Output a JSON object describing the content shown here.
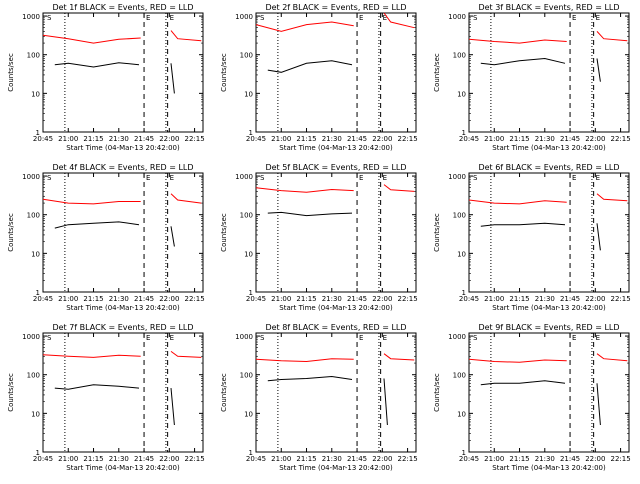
{
  "colors": {
    "events": "#000000",
    "lld": "#ff0000",
    "background": "#ffffff",
    "axis": "#000000"
  },
  "common": {
    "ylabel": "Counts/sec",
    "xlabel": "Start Time (04-Mar-13 20:42:00)",
    "x_ticks": [
      "20:45",
      "21:00",
      "21:15",
      "21:30",
      "21:45",
      "22:00",
      "22:15"
    ],
    "y_ticks": [
      "1",
      "10",
      "100",
      "1000"
    ],
    "markers": {
      "dotted_lines": [
        "20:58",
        "21:58"
      ],
      "dashed_lines": [
        "21:45",
        "21:59"
      ],
      "top_marks": [
        "S",
        "E",
        "E"
      ]
    }
  },
  "chart_data": [
    {
      "type": "line",
      "title": "Det 1f BLACK = Events, RED = LLD",
      "x_range": [
        "20:45",
        "22:20"
      ],
      "ylim": [
        1,
        1200
      ],
      "yscale": "log",
      "series": [
        {
          "name": "Events",
          "segments": [
            {
              "x": [
                "20:52",
                "21:00",
                "21:15",
                "21:30",
                "21:42"
              ],
              "y": [
                55,
                60,
                48,
                62,
                55
              ]
            },
            {
              "x": [
                "22:01",
                "22:03"
              ],
              "y": [
                60,
                10
              ]
            }
          ]
        },
        {
          "name": "LLD",
          "segments": [
            {
              "x": [
                "20:45",
                "21:00",
                "21:15",
                "21:30",
                "21:43"
              ],
              "y": [
                320,
                260,
                200,
                250,
                270
              ]
            },
            {
              "x": [
                "22:01",
                "22:05",
                "22:19"
              ],
              "y": [
                420,
                260,
                230
              ]
            }
          ]
        }
      ]
    },
    {
      "type": "line",
      "title": "Det 2f BLACK = Events, RED = LLD",
      "x_range": [
        "20:45",
        "22:20"
      ],
      "ylim": [
        1,
        1200
      ],
      "yscale": "log",
      "series": [
        {
          "name": "Events",
          "segments": [
            {
              "x": [
                "20:52",
                "21:00",
                "21:15",
                "21:30",
                "21:42"
              ],
              "y": [
                40,
                35,
                60,
                70,
                55
              ]
            }
          ]
        },
        {
          "name": "LLD",
          "segments": [
            {
              "x": [
                "20:45",
                "21:00",
                "21:15",
                "21:30",
                "21:43"
              ],
              "y": [
                600,
                400,
                600,
                700,
                560
              ]
            },
            {
              "x": [
                "22:01",
                "22:05",
                "22:19"
              ],
              "y": [
                1200,
                700,
                500
              ]
            }
          ]
        }
      ]
    },
    {
      "type": "line",
      "title": "Det 3f BLACK = Events, RED = LLD",
      "x_range": [
        "20:45",
        "22:20"
      ],
      "ylim": [
        1,
        1200
      ],
      "yscale": "log",
      "series": [
        {
          "name": "Events",
          "segments": [
            {
              "x": [
                "20:52",
                "21:00",
                "21:15",
                "21:30",
                "21:42"
              ],
              "y": [
                60,
                55,
                70,
                80,
                60
              ]
            },
            {
              "x": [
                "22:01",
                "22:03"
              ],
              "y": [
                80,
                20
              ]
            }
          ]
        },
        {
          "name": "LLD",
          "segments": [
            {
              "x": [
                "20:45",
                "21:00",
                "21:15",
                "21:30",
                "21:43"
              ],
              "y": [
                250,
                220,
                200,
                240,
                220
              ]
            },
            {
              "x": [
                "22:01",
                "22:05",
                "22:19"
              ],
              "y": [
                400,
                260,
                230
              ]
            }
          ]
        }
      ]
    },
    {
      "type": "line",
      "title": "Det 4f BLACK = Events, RED = LLD",
      "x_range": [
        "20:45",
        "22:20"
      ],
      "ylim": [
        1,
        1200
      ],
      "yscale": "log",
      "series": [
        {
          "name": "Events",
          "segments": [
            {
              "x": [
                "20:52",
                "21:00",
                "21:15",
                "21:30",
                "21:42"
              ],
              "y": [
                45,
                55,
                60,
                65,
                55
              ]
            },
            {
              "x": [
                "22:01",
                "22:03"
              ],
              "y": [
                50,
                15
              ]
            }
          ]
        },
        {
          "name": "LLD",
          "segments": [
            {
              "x": [
                "20:45",
                "21:00",
                "21:15",
                "21:30",
                "21:43"
              ],
              "y": [
                250,
                200,
                190,
                220,
                220
              ]
            },
            {
              "x": [
                "22:01",
                "22:05",
                "22:19"
              ],
              "y": [
                350,
                240,
                200
              ]
            }
          ]
        }
      ]
    },
    {
      "type": "line",
      "title": "Det 5f BLACK = Events, RED = LLD",
      "x_range": [
        "20:45",
        "22:20"
      ],
      "ylim": [
        1,
        1200
      ],
      "yscale": "log",
      "series": [
        {
          "name": "Events",
          "segments": [
            {
              "x": [
                "20:52",
                "21:00",
                "21:15",
                "21:30",
                "21:42"
              ],
              "y": [
                110,
                115,
                95,
                105,
                110
              ]
            }
          ]
        },
        {
          "name": "LLD",
          "segments": [
            {
              "x": [
                "20:45",
                "21:00",
                "21:15",
                "21:30",
                "21:43"
              ],
              "y": [
                500,
                420,
                380,
                450,
                420
              ]
            },
            {
              "x": [
                "22:01",
                "22:05",
                "22:19"
              ],
              "y": [
                600,
                440,
                400
              ]
            }
          ]
        }
      ]
    },
    {
      "type": "line",
      "title": "Det 6f BLACK = Events, RED = LLD",
      "x_range": [
        "20:45",
        "22:20"
      ],
      "ylim": [
        1,
        1200
      ],
      "yscale": "log",
      "series": [
        {
          "name": "Events",
          "segments": [
            {
              "x": [
                "20:52",
                "21:00",
                "21:15",
                "21:30",
                "21:42"
              ],
              "y": [
                50,
                55,
                55,
                60,
                55
              ]
            },
            {
              "x": [
                "22:01",
                "22:03"
              ],
              "y": [
                60,
                12
              ]
            }
          ]
        },
        {
          "name": "LLD",
          "segments": [
            {
              "x": [
                "20:45",
                "21:00",
                "21:15",
                "21:30",
                "21:43"
              ],
              "y": [
                240,
                200,
                190,
                230,
                210
              ]
            },
            {
              "x": [
                "22:01",
                "22:05",
                "22:19"
              ],
              "y": [
                350,
                250,
                230
              ]
            }
          ]
        }
      ]
    },
    {
      "type": "line",
      "title": "Det 7f BLACK = Events, RED = LLD",
      "x_range": [
        "20:45",
        "22:20"
      ],
      "ylim": [
        1,
        1200
      ],
      "yscale": "log",
      "series": [
        {
          "name": "Events",
          "segments": [
            {
              "x": [
                "20:52",
                "21:00",
                "21:15",
                "21:30",
                "21:42"
              ],
              "y": [
                45,
                42,
                55,
                50,
                45
              ]
            },
            {
              "x": [
                "22:01",
                "22:03"
              ],
              "y": [
                45,
                5
              ]
            }
          ]
        },
        {
          "name": "LLD",
          "segments": [
            {
              "x": [
                "20:45",
                "21:00",
                "21:15",
                "21:30",
                "21:43"
              ],
              "y": [
                330,
                300,
                280,
                320,
                300
              ]
            },
            {
              "x": [
                "22:01",
                "22:05",
                "22:19"
              ],
              "y": [
                400,
                300,
                280
              ]
            }
          ]
        }
      ]
    },
    {
      "type": "line",
      "title": "Det 8f BLACK = Events, RED = LLD",
      "x_range": [
        "20:45",
        "22:20"
      ],
      "ylim": [
        1,
        1200
      ],
      "yscale": "log",
      "series": [
        {
          "name": "Events",
          "segments": [
            {
              "x": [
                "20:52",
                "21:00",
                "21:15",
                "21:30",
                "21:42"
              ],
              "y": [
                70,
                75,
                80,
                90,
                75
              ]
            },
            {
              "x": [
                "22:01",
                "22:03"
              ],
              "y": [
                80,
                5
              ]
            }
          ]
        },
        {
          "name": "LLD",
          "segments": [
            {
              "x": [
                "20:45",
                "21:00",
                "21:15",
                "21:30",
                "21:43"
              ],
              "y": [
                250,
                230,
                220,
                260,
                250
              ]
            },
            {
              "x": [
                "22:01",
                "22:05",
                "22:19"
              ],
              "y": [
                350,
                260,
                240
              ]
            }
          ]
        }
      ]
    },
    {
      "type": "line",
      "title": "Det 9f BLACK = Events, RED = LLD",
      "x_range": [
        "20:45",
        "22:20"
      ],
      "ylim": [
        1,
        1200
      ],
      "yscale": "log",
      "series": [
        {
          "name": "Events",
          "segments": [
            {
              "x": [
                "20:52",
                "21:00",
                "21:15",
                "21:30",
                "21:42"
              ],
              "y": [
                55,
                60,
                60,
                70,
                60
              ]
            },
            {
              "x": [
                "22:01",
                "22:03"
              ],
              "y": [
                60,
                5
              ]
            }
          ]
        },
        {
          "name": "LLD",
          "segments": [
            {
              "x": [
                "20:45",
                "21:00",
                "21:15",
                "21:30",
                "21:43"
              ],
              "y": [
                250,
                220,
                210,
                240,
                230
              ]
            },
            {
              "x": [
                "22:01",
                "22:05",
                "22:19"
              ],
              "y": [
                350,
                260,
                230
              ]
            }
          ]
        }
      ]
    }
  ]
}
